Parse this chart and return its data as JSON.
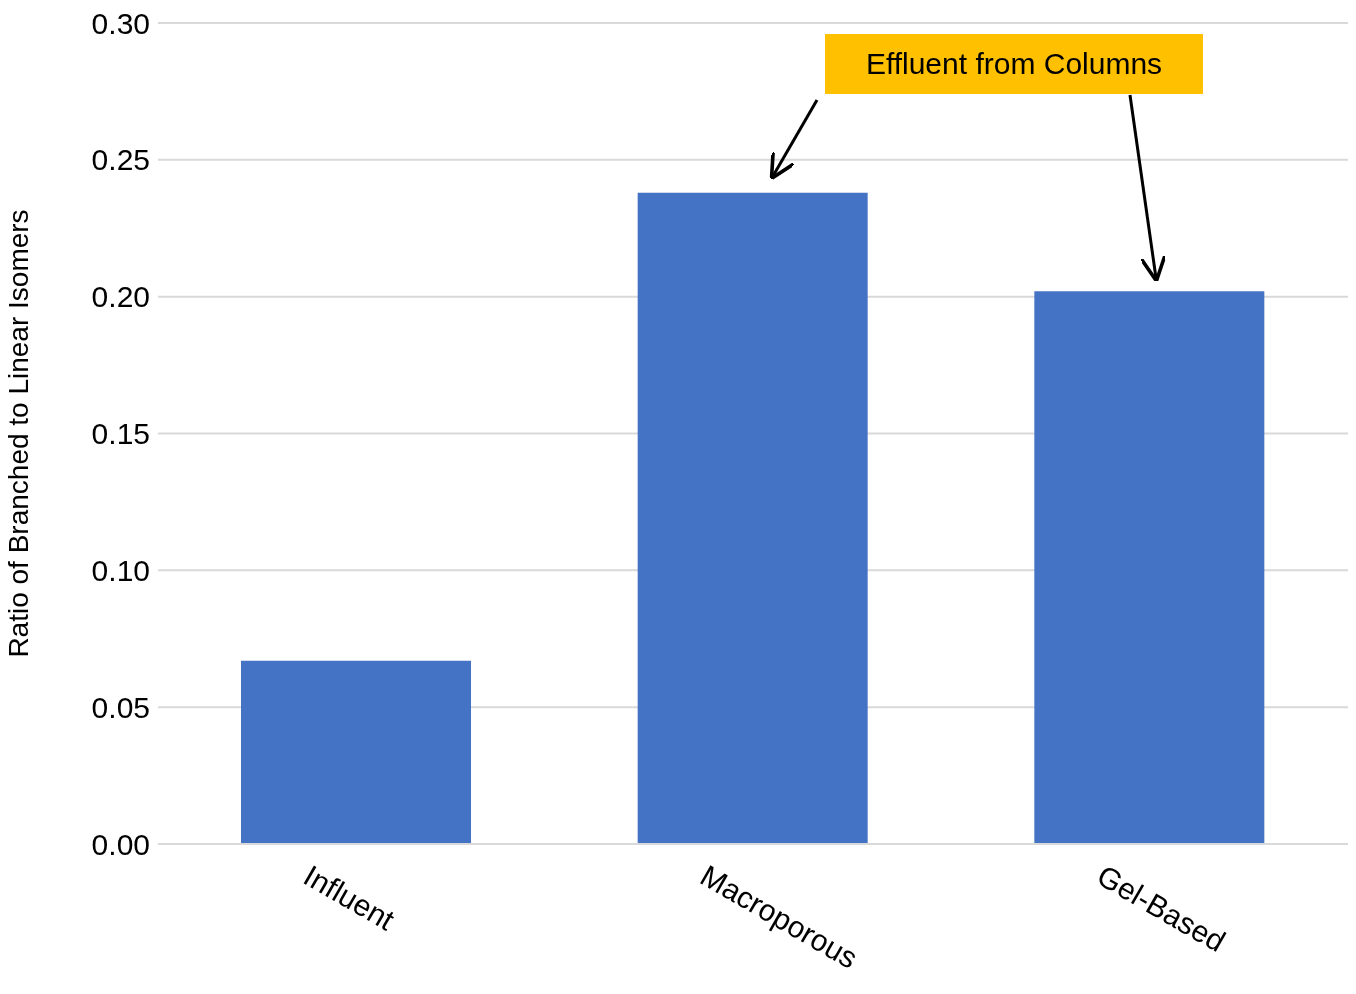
{
  "chart_data": {
    "type": "bar",
    "ylabel": "Ratio of Branched to Linear Isomers",
    "categories": [
      "Influent",
      "Macroporous",
      "Gel-Based"
    ],
    "values": [
      0.067,
      0.238,
      0.202
    ],
    "color": "#4472c4",
    "ylim": [
      0,
      0.3
    ],
    "yticks": [
      {
        "value": 0,
        "label": "0.00"
      },
      {
        "value": 0.05,
        "label": "0.05"
      },
      {
        "value": 0.1,
        "label": "0.10"
      },
      {
        "value": 0.15,
        "label": "0.15"
      },
      {
        "value": 0.2,
        "label": "0.20"
      },
      {
        "value": 0.25,
        "label": "0.25"
      },
      {
        "value": 0.3,
        "label": "0.30"
      }
    ],
    "grid": "y",
    "annotations": [
      "Effluent from Columns"
    ]
  }
}
